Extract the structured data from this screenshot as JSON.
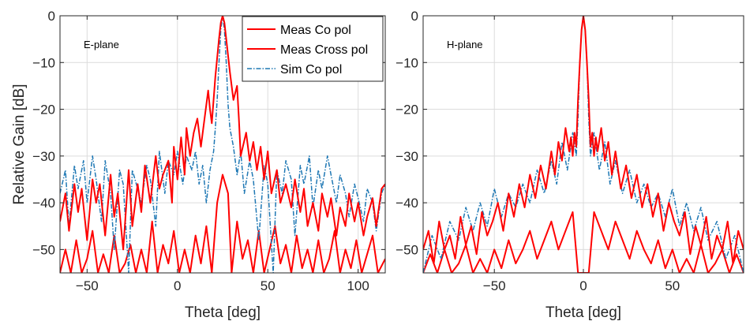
{
  "colors": {
    "meas": "#ff0000",
    "sim": "#1f78b4",
    "grid": "#dcdcdc",
    "axis": "#262626"
  },
  "chart_data": [
    {
      "type": "line",
      "annotation": "E-plane",
      "xlabel": "Theta [deg]",
      "ylabel": "Relative Gain [dB]",
      "xlim": [
        -65,
        115
      ],
      "ylim": [
        -55,
        0
      ],
      "xticks": [
        -50,
        0,
        50,
        100
      ],
      "yticks": [
        0,
        -10,
        -20,
        -30,
        -40,
        -50
      ],
      "grid": true,
      "legend": {
        "placement": "top-right",
        "entries": [
          "Meas Co pol",
          "Meas Cross pol",
          "Sim Co pol"
        ]
      },
      "series": [
        {
          "name": "Meas Co pol",
          "style": "solid",
          "x": [
            -65,
            -62,
            -60,
            -57,
            -55,
            -53,
            -50,
            -47,
            -45,
            -43,
            -40,
            -37,
            -35,
            -33,
            -30,
            -27,
            -25,
            -22,
            -20,
            -18,
            -15,
            -12,
            -10,
            -8,
            -5,
            -3,
            -2,
            0,
            2,
            4,
            5,
            7,
            9,
            11,
            13,
            15,
            17,
            18,
            19,
            21,
            23,
            24,
            25,
            26,
            27,
            29,
            31,
            33,
            34,
            35,
            38,
            40,
            42,
            44,
            46,
            48,
            50,
            52,
            55,
            57,
            60,
            63,
            65,
            68,
            70,
            72,
            75,
            78,
            80,
            83,
            85,
            88,
            90,
            93,
            95,
            98,
            100,
            103,
            105,
            108,
            110,
            113,
            115
          ],
          "y": [
            -44,
            -38,
            -46,
            -36,
            -42,
            -37,
            -48,
            -35,
            -40,
            -36,
            -47,
            -34,
            -43,
            -38,
            -50,
            -33,
            -45,
            -36,
            -42,
            -32,
            -40,
            -30,
            -37,
            -34,
            -31,
            -40,
            -28,
            -35,
            -26,
            -34,
            -24,
            -30,
            -25,
            -22,
            -28,
            -22,
            -16,
            -20,
            -23,
            -13,
            -5,
            -1.5,
            0,
            -1.5,
            -5,
            -12,
            -18,
            -15,
            -22,
            -30,
            -25,
            -31,
            -27,
            -33,
            -28,
            -35,
            -29,
            -38,
            -33,
            -40,
            -36,
            -41,
            -35,
            -42,
            -37,
            -45,
            -40,
            -46,
            -38,
            -43,
            -39,
            -47,
            -41,
            -45,
            -38,
            -44,
            -40,
            -47,
            -43,
            -39,
            -45,
            -37,
            -36
          ]
        },
        {
          "name": "Meas Cross pol",
          "style": "solid",
          "x": [
            -65,
            -62,
            -59,
            -56,
            -53,
            -50,
            -47,
            -44,
            -41,
            -38,
            -35,
            -32,
            -29,
            -26,
            -23,
            -20,
            -17,
            -14,
            -11,
            -8,
            -5,
            -2,
            1,
            4,
            7,
            10,
            13,
            16,
            19,
            22,
            25,
            28,
            30,
            33,
            36,
            39,
            42,
            45,
            48,
            51,
            54,
            57,
            60,
            63,
            66,
            69,
            72,
            75,
            78,
            81,
            84,
            87,
            90,
            93,
            96,
            99,
            102,
            105,
            108,
            111,
            115
          ],
          "y": [
            -55,
            -50,
            -55,
            -48,
            -55,
            -52,
            -46,
            -55,
            -51,
            -55,
            -47,
            -55,
            -53,
            -49,
            -55,
            -50,
            -55,
            -44,
            -55,
            -49,
            -53,
            -46,
            -55,
            -50,
            -55,
            -47,
            -53,
            -45,
            -55,
            -40,
            -34,
            -38,
            -55,
            -44,
            -52,
            -48,
            -55,
            -46,
            -55,
            -50,
            -45,
            -53,
            -49,
            -55,
            -47,
            -54,
            -50,
            -55,
            -48,
            -55,
            -52,
            -46,
            -55,
            -50,
            -54,
            -48,
            -55,
            -51,
            -47,
            -55,
            -52
          ]
        },
        {
          "name": "Sim Co pol",
          "style": "dashdot",
          "x": [
            -65,
            -62,
            -60,
            -57,
            -55,
            -52,
            -50,
            -47,
            -45,
            -42,
            -40,
            -37,
            -35,
            -32,
            -30,
            -27,
            -25,
            -22,
            -20,
            -17,
            -15,
            -12,
            -10,
            -7,
            -5,
            -2,
            0,
            3,
            5,
            8,
            10,
            12,
            14,
            16,
            18,
            20,
            21,
            22,
            23,
            24,
            25,
            26,
            27,
            28,
            29,
            31,
            33,
            35,
            37,
            40,
            42,
            45,
            48,
            50,
            53,
            55,
            58,
            60,
            63,
            65,
            68,
            70,
            73,
            75,
            78,
            80,
            83,
            85,
            88,
            90,
            93,
            95,
            98,
            100,
            103,
            105,
            108,
            110,
            113,
            115
          ],
          "y": [
            -38,
            -33,
            -45,
            -32,
            -37,
            -31,
            -40,
            -30,
            -35,
            -44,
            -31,
            -38,
            -50,
            -33,
            -36,
            -55,
            -33,
            -37,
            -40,
            -32,
            -35,
            -45,
            -29,
            -38,
            -31,
            -34,
            -29,
            -36,
            -30,
            -33,
            -29,
            -36,
            -32,
            -40,
            -33,
            -29,
            -24,
            -18,
            -10,
            -3,
            0,
            -3,
            -10,
            -19,
            -24,
            -28,
            -34,
            -29,
            -38,
            -31,
            -35,
            -48,
            -32,
            -36,
            -55,
            -33,
            -38,
            -31,
            -35,
            -47,
            -32,
            -36,
            -30,
            -41,
            -33,
            -37,
            -30,
            -34,
            -40,
            -34,
            -38,
            -43,
            -36,
            -39,
            -44,
            -37,
            -40,
            -46,
            -38,
            -36
          ]
        }
      ]
    },
    {
      "type": "line",
      "annotation": "H-plane",
      "xlabel": "Theta [deg]",
      "ylabel": "",
      "xlim": [
        -90,
        90
      ],
      "ylim": [
        -55,
        0
      ],
      "xticks": [
        -50,
        0,
        50
      ],
      "yticks": [
        0,
        -10,
        -20,
        -30,
        -40,
        -50
      ],
      "grid": true,
      "series": [
        {
          "name": "Meas Co pol",
          "style": "solid",
          "x": [
            -90,
            -87,
            -84,
            -81,
            -78,
            -75,
            -72,
            -69,
            -66,
            -63,
            -60,
            -57,
            -54,
            -51,
            -48,
            -45,
            -42,
            -39,
            -36,
            -33,
            -30,
            -27,
            -24,
            -21,
            -18,
            -16,
            -14,
            -12,
            -10,
            -8,
            -7,
            -6,
            -5,
            -4,
            -3,
            -2,
            -1,
            0,
            1,
            2,
            3,
            4,
            5,
            6,
            7,
            8,
            10,
            12,
            14,
            16,
            18,
            21,
            24,
            27,
            30,
            33,
            36,
            39,
            42,
            45,
            48,
            51,
            54,
            57,
            60,
            63,
            66,
            69,
            72,
            75,
            78,
            81,
            84,
            87,
            90
          ],
          "y": [
            -50,
            -46,
            -53,
            -44,
            -50,
            -47,
            -52,
            -43,
            -49,
            -45,
            -51,
            -42,
            -47,
            -44,
            -40,
            -46,
            -38,
            -43,
            -36,
            -41,
            -34,
            -39,
            -32,
            -37,
            -29,
            -34,
            -27,
            -31,
            -24,
            -29,
            -26,
            -30,
            -25,
            -28,
            -18,
            -10,
            -3,
            0,
            -3,
            -10,
            -18,
            -28,
            -25,
            -30,
            -26,
            -29,
            -24,
            -31,
            -27,
            -34,
            -29,
            -37,
            -32,
            -39,
            -34,
            -41,
            -36,
            -43,
            -38,
            -46,
            -40,
            -44,
            -47,
            -42,
            -51,
            -45,
            -49,
            -43,
            -52,
            -47,
            -50,
            -44,
            -53,
            -46,
            -50
          ]
        },
        {
          "name": "Meas Cross pol",
          "style": "solid",
          "x": [
            -90,
            -86,
            -82,
            -78,
            -74,
            -70,
            -66,
            -62,
            -58,
            -54,
            -50,
            -46,
            -42,
            -38,
            -34,
            -30,
            -26,
            -22,
            -18,
            -14,
            -10,
            -6,
            -3,
            0,
            3,
            6,
            10,
            14,
            18,
            22,
            26,
            30,
            34,
            38,
            42,
            46,
            50,
            54,
            58,
            62,
            66,
            70,
            74,
            78,
            82,
            86,
            90
          ],
          "y": [
            -55,
            -51,
            -55,
            -50,
            -55,
            -53,
            -49,
            -55,
            -52,
            -55,
            -50,
            -54,
            -48,
            -53,
            -50,
            -46,
            -52,
            -48,
            -44,
            -50,
            -46,
            -42,
            -55,
            -55,
            -55,
            -42,
            -46,
            -50,
            -44,
            -48,
            -52,
            -46,
            -50,
            -53,
            -48,
            -54,
            -50,
            -55,
            -52,
            -55,
            -49,
            -55,
            -53,
            -50,
            -55,
            -51,
            -55
          ]
        },
        {
          "name": "Sim Co pol",
          "style": "dashdot",
          "x": [
            -90,
            -85,
            -80,
            -75,
            -70,
            -66,
            -62,
            -58,
            -54,
            -50,
            -46,
            -42,
            -38,
            -34,
            -30,
            -26,
            -22,
            -18,
            -15,
            -12,
            -9,
            -6,
            -4,
            -3,
            -2,
            -1,
            0,
            1,
            2,
            3,
            4,
            6,
            9,
            12,
            15,
            18,
            22,
            26,
            30,
            34,
            38,
            42,
            46,
            50,
            54,
            58,
            62,
            66,
            70,
            75,
            80,
            85,
            90
          ],
          "y": [
            -55,
            -47,
            -52,
            -44,
            -48,
            -41,
            -46,
            -40,
            -45,
            -37,
            -43,
            -38,
            -41,
            -36,
            -40,
            -33,
            -38,
            -31,
            -36,
            -27,
            -33,
            -25,
            -30,
            -22,
            -10,
            -3,
            0,
            -3,
            -10,
            -22,
            -30,
            -25,
            -33,
            -27,
            -36,
            -31,
            -38,
            -33,
            -40,
            -36,
            -41,
            -38,
            -43,
            -37,
            -45,
            -40,
            -46,
            -41,
            -48,
            -44,
            -52,
            -47,
            -55
          ]
        }
      ]
    }
  ]
}
